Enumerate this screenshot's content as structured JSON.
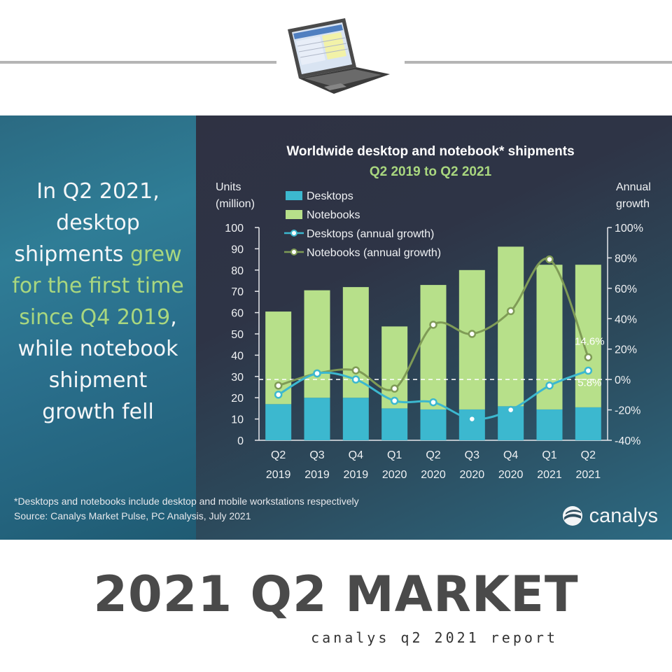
{
  "banner": {
    "headline": {
      "lines": [
        {
          "text": "In Q2 2021,",
          "highlight": ""
        },
        {
          "text": "desktop",
          "highlight": ""
        },
        {
          "text": "shipments ",
          "highlight": "grew"
        },
        {
          "text": "",
          "highlight": "for the first time"
        },
        {
          "text": "",
          "highlight": "since Q4 2019",
          "tail": ","
        },
        {
          "text": "while notebook",
          "highlight": ""
        },
        {
          "text": "shipment",
          "highlight": ""
        },
        {
          "text": "growth fell",
          "highlight": ""
        }
      ],
      "highlight_color": "#a9d77f"
    },
    "footnote": "*Desktops and notebooks include desktop and mobile workstations respectively",
    "source": "Source: Canalys Market Pulse, PC Analysis, July 2021",
    "brand": "canalys"
  },
  "chart_data": {
    "type": "bar",
    "stacked": true,
    "title": "Worldwide desktop and notebook* shipments",
    "subtitle": "Q2 2019 to Q2 2021",
    "ylabel": "Units\n(million)",
    "y2label": "Annual\ngrowth",
    "ylim": [
      0,
      100
    ],
    "yticks": [
      0,
      10,
      20,
      30,
      40,
      50,
      60,
      70,
      80,
      90,
      100
    ],
    "y2lim": [
      -40,
      100
    ],
    "y2ticks": [
      "-40%",
      "-20%",
      "0%",
      "20%",
      "40%",
      "60%",
      "80%",
      "100%"
    ],
    "y2tick_values": [
      -40,
      -20,
      0,
      20,
      40,
      60,
      80,
      100
    ],
    "categories": [
      [
        "Q2",
        "2019"
      ],
      [
        "Q3",
        "2019"
      ],
      [
        "Q4",
        "2019"
      ],
      [
        "Q1",
        "2020"
      ],
      [
        "Q2",
        "2020"
      ],
      [
        "Q3",
        "2020"
      ],
      [
        "Q4",
        "2020"
      ],
      [
        "Q1",
        "2021"
      ],
      [
        "Q2",
        "2021"
      ]
    ],
    "series": [
      {
        "name": "Desktops",
        "kind": "bar",
        "axis": "left",
        "color": "#3cb8cf",
        "values": [
          17,
          20,
          20,
          15,
          14.5,
          14.5,
          16,
          14.5,
          15.5
        ]
      },
      {
        "name": "Notebooks",
        "kind": "bar",
        "axis": "left",
        "color": "#b7e08a",
        "values": [
          43.5,
          50.5,
          52,
          38.5,
          58.5,
          65.5,
          75,
          68,
          67
        ]
      },
      {
        "name": "Desktops (annual growth)",
        "kind": "line",
        "axis": "right",
        "color": "#3cb8cf",
        "values": [
          -10,
          4,
          0,
          -14,
          -15,
          -26,
          -20,
          -4,
          5.8
        ]
      },
      {
        "name": "Notebooks (annual growth)",
        "kind": "line",
        "axis": "right",
        "color": "#7f9b56",
        "values": [
          -4,
          4,
          6,
          -6,
          36,
          30,
          45,
          79,
          14.6
        ]
      }
    ],
    "annotations": [
      {
        "text": "14.6%",
        "series": "Notebooks (annual growth)",
        "index": 8
      },
      {
        "text": "5.8%",
        "series": "Desktops (annual growth)",
        "index": 8
      }
    ],
    "reference_line": {
      "axis": "right",
      "value": 0,
      "style": "dashed"
    },
    "legend": "top-left"
  },
  "footer": {
    "title": "2021 Q2 MARKET",
    "subtitle": "canalys q2 2021 report"
  }
}
